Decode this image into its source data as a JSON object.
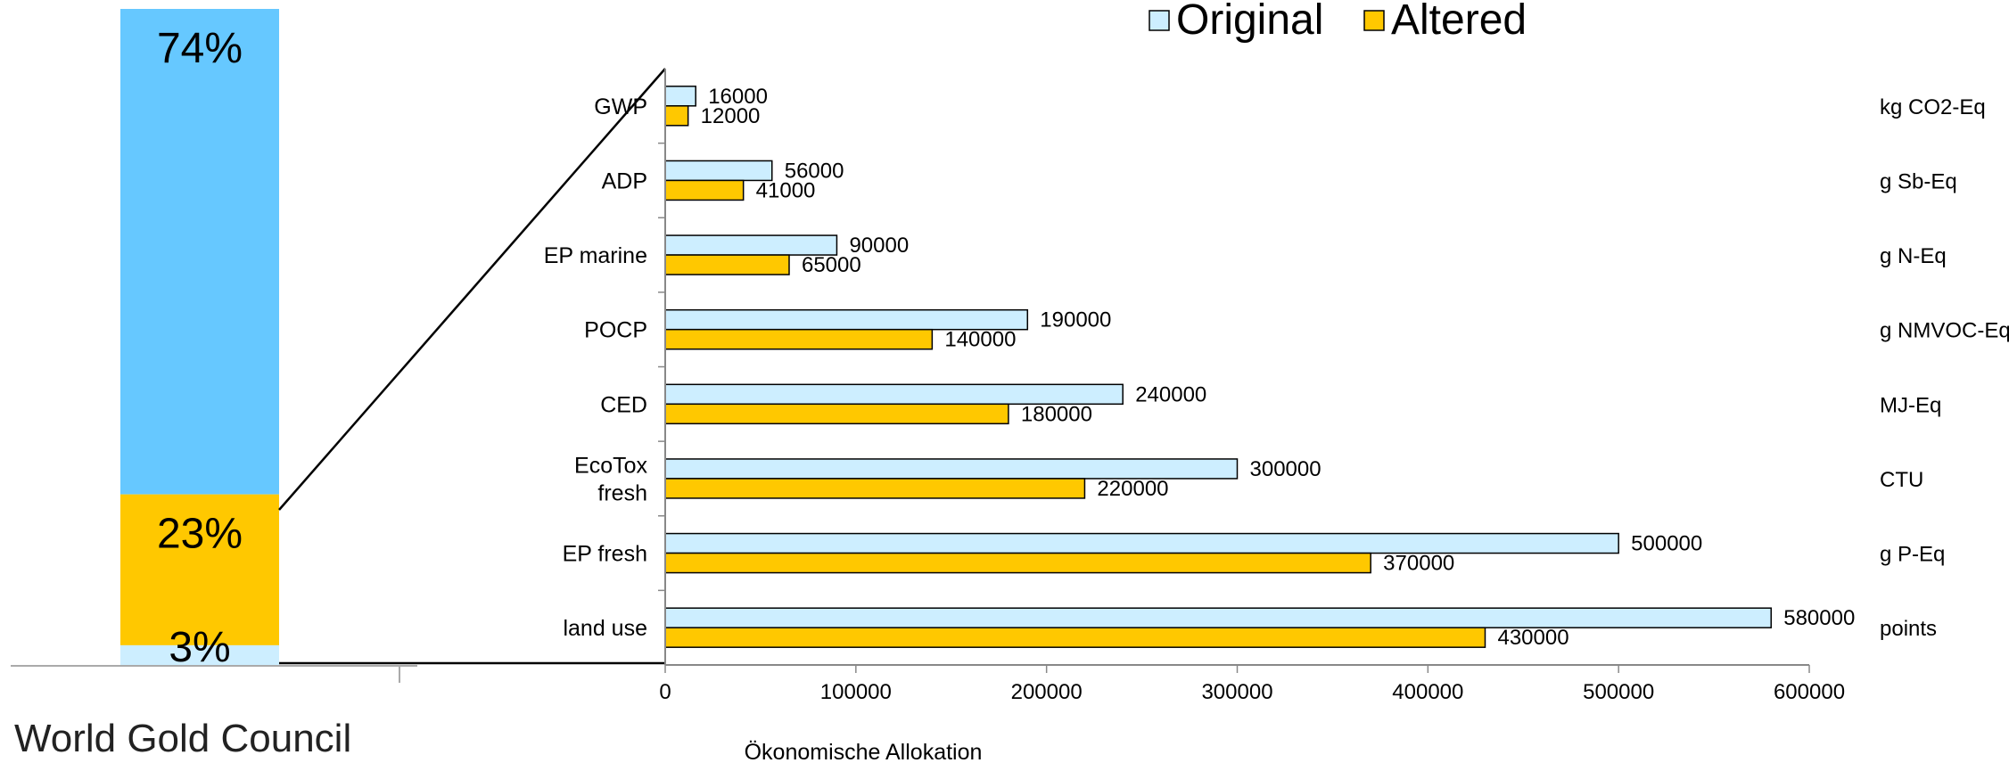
{
  "source_label": "World Gold Council",
  "chart_data": [
    {
      "type": "bar",
      "orientation": "stacked-vertical",
      "segments": [
        {
          "label": "74%",
          "value": 74,
          "color": "#66c8ff"
        },
        {
          "label": "23%",
          "value": 23,
          "color": "#ffc800"
        },
        {
          "label": "3%",
          "value": 3,
          "color": "#cdeeff"
        }
      ]
    },
    {
      "type": "bar",
      "orientation": "horizontal",
      "categories": [
        "GWP",
        "ADP",
        "EP marine",
        "POCP",
        "CED",
        "EcoTox fresh",
        "EP fresh",
        "land use"
      ],
      "units": [
        "kg CO2-Eq",
        "g Sb-Eq",
        "g N-Eq",
        "g NMVOC-Eq",
        "MJ-Eq",
        "CTU",
        "g P-Eq",
        "points"
      ],
      "series": [
        {
          "name": "Original",
          "color": "#cdeeff",
          "values": [
            16000,
            56000,
            90000,
            190000,
            240000,
            300000,
            500000,
            580000
          ]
        },
        {
          "name": "Altered",
          "color": "#ffc800",
          "values": [
            12000,
            41000,
            65000,
            140000,
            180000,
            220000,
            370000,
            430000
          ]
        }
      ],
      "xlabel": "Ökonomische Allokation",
      "xlim": [
        0,
        600000
      ],
      "xticks": [
        0,
        100000,
        200000,
        300000,
        400000,
        500000,
        600000
      ],
      "legend": "top-right",
      "grid": false
    }
  ]
}
